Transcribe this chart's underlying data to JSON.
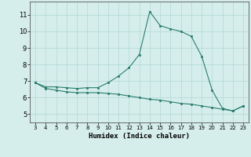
{
  "xlabel": "Humidex (Indice chaleur)",
  "x": [
    3,
    4,
    5,
    6,
    7,
    8,
    9,
    10,
    11,
    12,
    13,
    14,
    15,
    16,
    17,
    18,
    19,
    20,
    21,
    22,
    23
  ],
  "y_upper": [
    6.9,
    6.65,
    6.65,
    6.6,
    6.55,
    6.6,
    6.6,
    6.9,
    7.3,
    7.8,
    8.6,
    11.2,
    10.35,
    10.15,
    10.0,
    9.7,
    8.5,
    6.45,
    5.35,
    5.2,
    5.5
  ],
  "y_lower": [
    6.9,
    6.55,
    6.45,
    6.35,
    6.3,
    6.3,
    6.3,
    6.25,
    6.2,
    6.1,
    6.0,
    5.9,
    5.85,
    5.75,
    5.65,
    5.6,
    5.5,
    5.4,
    5.3,
    5.2,
    5.5
  ],
  "line_color": "#2a7d6e",
  "marker_color": "#2a7d6e",
  "bg_color": "#d6eeeb",
  "grid_color": "#b0d8d4",
  "xlim": [
    2.5,
    23.5
  ],
  "ylim": [
    4.5,
    11.8
  ],
  "yticks": [
    5,
    6,
    7,
    8,
    9,
    10,
    11
  ],
  "xticks": [
    3,
    4,
    5,
    6,
    7,
    8,
    9,
    10,
    11,
    12,
    13,
    14,
    15,
    16,
    17,
    18,
    19,
    20,
    21,
    22,
    23
  ]
}
